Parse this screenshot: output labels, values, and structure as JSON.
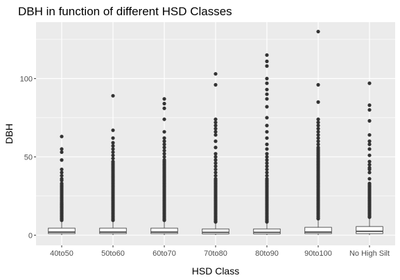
{
  "chart_data": {
    "type": "boxplot",
    "title": "DBH in function of different HSD Classes",
    "xlabel": "HSD Class",
    "ylabel": "DBH",
    "categories": [
      "40to50",
      "50to60",
      "60to70",
      "70to80",
      "80to90",
      "90to100",
      "No High Silt"
    ],
    "yticks": [
      0,
      50,
      100
    ],
    "ylim": [
      -6.5,
      136
    ],
    "grid": true,
    "background": "#ebebeb",
    "gridline_color": "#ffffff",
    "box_fill": "#ffffff",
    "box_stroke": "#333333",
    "point_color": "#333333",
    "boxes": [
      {
        "category": "40to50",
        "q1": 1.0,
        "median": 2.0,
        "q3": 4.5,
        "whisker_low": 0.1,
        "whisker_high": 9.0,
        "outliers": [
          63,
          55,
          53,
          48,
          42,
          40,
          38,
          36,
          35,
          33,
          32,
          31,
          30,
          29,
          28,
          27,
          26,
          25,
          24,
          23,
          22,
          21,
          20.5,
          20,
          19.5,
          19,
          18.5,
          18,
          17.5,
          17,
          16.5,
          16,
          15.5,
          15,
          14.5,
          14,
          13.5,
          13,
          12.5,
          12,
          11.5,
          11,
          10.5,
          10,
          9.5
        ]
      },
      {
        "category": "50to60",
        "q1": 1.0,
        "median": 2.0,
        "q3": 4.5,
        "whisker_low": 0.1,
        "whisker_high": 9.0,
        "outliers": [
          89,
          67,
          62,
          59,
          57,
          55,
          53,
          51,
          49,
          47,
          46,
          45,
          44,
          43,
          42,
          41,
          40,
          39,
          38,
          37,
          36,
          35,
          34,
          33,
          32,
          31,
          30,
          29,
          28,
          27,
          26,
          25,
          24,
          23,
          22,
          21,
          20,
          19,
          18,
          17,
          16,
          15,
          14,
          13,
          12,
          11,
          10,
          9.5
        ]
      },
      {
        "category": "60to70",
        "q1": 1.0,
        "median": 2.0,
        "q3": 4.5,
        "whisker_low": 0.1,
        "whisker_high": 9.0,
        "outliers": [
          87,
          84,
          81,
          74,
          66,
          62,
          60,
          58,
          56,
          54,
          52,
          50,
          48,
          47,
          46,
          45,
          44,
          43,
          42,
          41,
          40,
          39,
          38,
          37,
          36,
          35,
          34,
          33,
          32,
          31,
          30,
          29,
          28,
          27,
          26,
          25,
          24,
          23,
          22,
          21,
          20,
          19,
          18,
          17,
          16,
          15,
          14,
          13,
          12,
          11,
          10,
          9.5
        ]
      },
      {
        "category": "70to80",
        "q1": 0.8,
        "median": 1.8,
        "q3": 4.0,
        "whisker_low": 0.1,
        "whisker_high": 8.0,
        "outliers": [
          103,
          96,
          74,
          72,
          70,
          68,
          66,
          64,
          60,
          56,
          52,
          50,
          48,
          46,
          44,
          42,
          40,
          38,
          36,
          35,
          34,
          33,
          32,
          31,
          30,
          29,
          28,
          27,
          26,
          25,
          24,
          23,
          22,
          21,
          20,
          19,
          18,
          17,
          16,
          15,
          14,
          13,
          12,
          11,
          10,
          9,
          8.5
        ]
      },
      {
        "category": "80to90",
        "q1": 0.8,
        "median": 1.8,
        "q3": 4.0,
        "whisker_low": 0.1,
        "whisker_high": 8.0,
        "outliers": [
          115,
          111,
          108,
          100,
          97,
          93,
          90,
          87,
          82,
          75,
          70,
          66,
          62,
          58,
          55,
          52,
          50,
          48,
          46,
          44,
          42,
          40,
          38,
          36,
          35,
          34,
          33,
          32,
          31,
          30,
          29,
          28,
          27,
          26,
          25,
          24,
          23,
          22,
          21,
          20,
          19,
          18,
          17,
          16,
          15,
          14,
          13,
          12,
          11,
          10,
          9,
          8.5
        ]
      },
      {
        "category": "90to100",
        "q1": 1.0,
        "median": 2.0,
        "q3": 5.0,
        "whisker_low": 0.1,
        "whisker_high": 10.0,
        "outliers": [
          130,
          96,
          85,
          74,
          72,
          70,
          68,
          66,
          64,
          62,
          60,
          58,
          56,
          55,
          54,
          53,
          52,
          51,
          50,
          49,
          48,
          47,
          46,
          45,
          44,
          43,
          42,
          41,
          40,
          39,
          38,
          37,
          36,
          35,
          34,
          33,
          32,
          31,
          30,
          29,
          28,
          27,
          26,
          25,
          24,
          23,
          22,
          21,
          20,
          19,
          18,
          17,
          16,
          15,
          14,
          13,
          12,
          11,
          10.5
        ]
      },
      {
        "category": "No High Silt",
        "q1": 1.0,
        "median": 2.5,
        "q3": 5.5,
        "whisker_low": 0.1,
        "whisker_high": 11.0,
        "outliers": [
          97,
          83,
          80,
          73,
          64,
          60,
          58,
          55,
          51,
          47,
          45,
          43,
          42,
          40,
          36,
          33,
          32,
          31,
          30,
          29,
          28,
          27,
          26,
          25,
          24,
          23,
          22,
          21,
          20,
          19,
          18,
          17,
          16,
          15,
          14,
          13,
          12,
          11.5
        ]
      }
    ]
  }
}
